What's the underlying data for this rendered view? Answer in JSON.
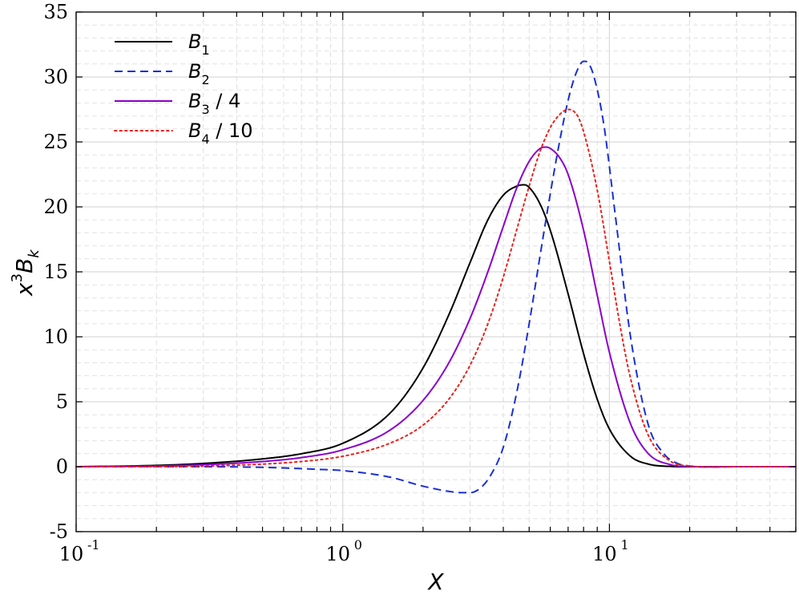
{
  "chart_data": {
    "type": "line",
    "xscale": "log",
    "xlim": [
      0.1,
      50
    ],
    "ylim": [
      -5,
      35
    ],
    "yticks": [
      -5,
      0,
      5,
      10,
      15,
      20,
      25,
      30,
      35
    ],
    "xticks": [
      {
        "value": 0.1,
        "base": "10",
        "exp": "-1"
      },
      {
        "value": 1,
        "base": "10",
        "exp": "0"
      },
      {
        "value": 10,
        "base": "10",
        "exp": "1"
      }
    ],
    "xlabel": "X",
    "ylabel": {
      "base": "x",
      "sup": "3",
      "main": "B",
      "sub": "k"
    },
    "grid": true,
    "legend_position": "top-left",
    "series": [
      {
        "name": "B_1",
        "legend": {
          "main": "B",
          "sub": "1",
          "suffix": ""
        },
        "color": "#000000",
        "style": "solid",
        "x": [
          0.1,
          0.2,
          0.3,
          0.5,
          0.7,
          1.0,
          1.5,
          2.0,
          2.5,
          3.0,
          3.5,
          4.0,
          4.5,
          4.8,
          5.0,
          5.5,
          6.0,
          7.0,
          8.0,
          9.0,
          10,
          12,
          14,
          17,
          20,
          30,
          50
        ],
        "values": [
          0.0,
          0.1,
          0.25,
          0.6,
          1.0,
          1.8,
          4.1,
          7.6,
          11.7,
          15.7,
          19.0,
          20.9,
          21.6,
          21.7,
          21.5,
          20.2,
          18.2,
          13.3,
          8.7,
          5.2,
          2.9,
          0.8,
          0.2,
          0.02,
          0.0,
          0.0,
          0.0
        ]
      },
      {
        "name": "B_2",
        "legend": {
          "main": "B",
          "sub": "2",
          "suffix": ""
        },
        "color": "#1a2fd6",
        "style": "dashed",
        "x": [
          0.1,
          0.3,
          0.5,
          0.8,
          1.0,
          1.5,
          2.0,
          2.5,
          2.8,
          3.0,
          3.3,
          3.6,
          4.0,
          4.5,
          5.0,
          5.5,
          6.0,
          6.5,
          7.0,
          7.5,
          8.0,
          8.3,
          8.7,
          9.5,
          10.5,
          12,
          14,
          16,
          18,
          20,
          30,
          50
        ],
        "values": [
          0.0,
          0.0,
          -0.05,
          -0.2,
          -0.3,
          -0.8,
          -1.5,
          -1.9,
          -2.0,
          -2.0,
          -1.6,
          -0.6,
          1.5,
          5.8,
          11.0,
          16.3,
          21.0,
          25.0,
          28.2,
          30.3,
          31.2,
          31.1,
          30.2,
          26.5,
          19.5,
          10.0,
          3.2,
          1.0,
          0.25,
          0.05,
          0.0,
          0.0
        ]
      },
      {
        "name": "B_3 / 4",
        "legend": {
          "main": "B",
          "sub": "3",
          "suffix": " / 4"
        },
        "color": "#8b00c9",
        "style": "solid",
        "x": [
          0.1,
          0.2,
          0.3,
          0.5,
          0.7,
          1.0,
          1.5,
          2.0,
          2.5,
          3.0,
          3.5,
          4.0,
          4.5,
          5.0,
          5.5,
          5.8,
          6.0,
          6.5,
          7.0,
          8.0,
          9.0,
          10,
          12,
          14,
          17,
          20,
          30,
          50
        ],
        "values": [
          0.0,
          0.05,
          0.15,
          0.4,
          0.7,
          1.3,
          2.8,
          5.1,
          8.0,
          11.4,
          15.0,
          18.5,
          21.5,
          23.5,
          24.5,
          24.6,
          24.5,
          23.8,
          22.5,
          18.2,
          13.2,
          8.8,
          3.3,
          1.0,
          0.15,
          0.02,
          0.0,
          0.0
        ]
      },
      {
        "name": "B_4 / 10",
        "legend": {
          "main": "B",
          "sub": "4",
          "suffix": " / 10"
        },
        "color": "#e8231c",
        "style": "dotted",
        "x": [
          0.1,
          0.2,
          0.3,
          0.5,
          0.7,
          1.0,
          1.5,
          2.0,
          2.5,
          3.0,
          3.5,
          4.0,
          4.5,
          5.0,
          5.5,
          6.0,
          6.5,
          7.0,
          7.3,
          7.6,
          8.0,
          9.0,
          10,
          11,
          12,
          14,
          17,
          20,
          30,
          50
        ],
        "values": [
          0.0,
          0.0,
          0.05,
          0.2,
          0.4,
          0.8,
          1.8,
          3.2,
          5.2,
          7.8,
          11.0,
          14.6,
          18.3,
          21.6,
          24.3,
          26.1,
          27.1,
          27.5,
          27.4,
          27.0,
          25.8,
          21.3,
          15.8,
          10.7,
          6.8,
          2.4,
          0.4,
          0.06,
          0.0,
          0.0
        ]
      }
    ]
  }
}
